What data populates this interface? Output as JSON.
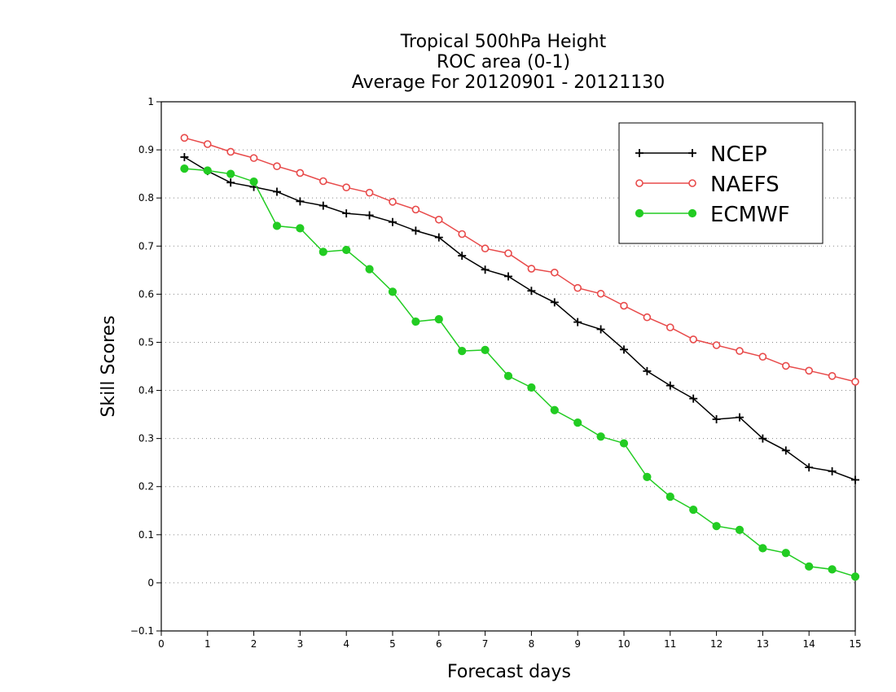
{
  "chart_data": {
    "type": "line",
    "title_lines": [
      "Tropical 500hPa Height",
      "ROC area (0-1)",
      "Average For 20120901 - 20121130"
    ],
    "xlabel": "Forecast days",
    "ylabel": "Skill Scores",
    "xlim": [
      0,
      15
    ],
    "ylim": [
      -0.1,
      1
    ],
    "x_ticks": [
      "0",
      "1",
      "2",
      "3",
      "4",
      "5",
      "6",
      "7",
      "8",
      "9",
      "10",
      "11",
      "12",
      "13",
      "14",
      "15"
    ],
    "y_ticks": [
      "−0.1",
      "0",
      "0.1",
      "0.2",
      "0.3",
      "0.4",
      "0.5",
      "0.6",
      "0.7",
      "0.8",
      "0.9",
      "1"
    ],
    "grid": "horizontal dotted",
    "legend_position": "top-right",
    "x": [
      0.5,
      1,
      1.5,
      2,
      2.5,
      3,
      3.5,
      4,
      4.5,
      5,
      5.5,
      6,
      6.5,
      7,
      7.5,
      8,
      8.5,
      9,
      9.5,
      10,
      10.5,
      11,
      11.5,
      12,
      12.5,
      13,
      13.5,
      14,
      14.5,
      15
    ],
    "series": [
      {
        "name": "NCEP",
        "color": "#000000",
        "marker": "plus",
        "values": [
          0.885,
          0.856,
          0.832,
          0.823,
          0.813,
          0.793,
          0.784,
          0.768,
          0.764,
          0.75,
          0.732,
          0.718,
          0.68,
          0.651,
          0.637,
          0.607,
          0.583,
          0.542,
          0.527,
          0.485,
          0.44,
          0.41,
          0.383,
          0.34,
          0.344,
          0.3,
          0.275,
          0.24,
          0.232,
          0.214
        ]
      },
      {
        "name": "NAEFS",
        "color": "#e84a4a",
        "marker": "open-circle",
        "values": [
          0.925,
          0.912,
          0.896,
          0.883,
          0.866,
          0.852,
          0.835,
          0.822,
          0.811,
          0.792,
          0.776,
          0.755,
          0.725,
          0.695,
          0.685,
          0.653,
          0.645,
          0.613,
          0.601,
          0.576,
          0.552,
          0.531,
          0.506,
          0.494,
          0.482,
          0.47,
          0.451,
          0.441,
          0.43,
          0.418
        ]
      },
      {
        "name": "ECMWF",
        "color": "#22cc22",
        "marker": "filled-circle",
        "values": [
          0.861,
          0.857,
          0.85,
          0.834,
          0.742,
          0.737,
          0.688,
          0.692,
          0.652,
          0.605,
          0.543,
          0.548,
          0.482,
          0.484,
          0.43,
          0.406,
          0.359,
          0.333,
          0.304,
          0.29,
          0.22,
          0.179,
          0.152,
          0.118,
          0.11,
          0.072,
          0.062,
          0.034,
          0.028,
          0.013
        ]
      }
    ]
  }
}
